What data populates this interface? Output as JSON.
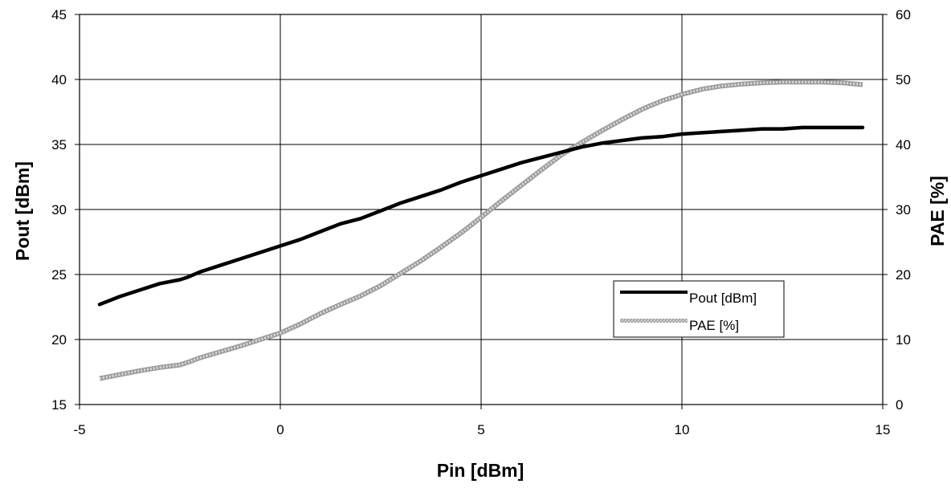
{
  "chart_data": {
    "type": "line",
    "title": "",
    "xlabel": "Pin [dBm]",
    "ylabel": "Pout [dBm]",
    "y2label": "PAE [%]",
    "xlim": [
      -5,
      15
    ],
    "ylim": [
      15,
      45
    ],
    "y2lim": [
      0,
      60
    ],
    "x_ticks": [
      -5,
      0,
      5,
      10,
      15
    ],
    "y_ticks": [
      15,
      20,
      25,
      30,
      35,
      40,
      45
    ],
    "y2_ticks": [
      0,
      10,
      20,
      30,
      40,
      50,
      60
    ],
    "grid": true,
    "legend_position": "bottom-right",
    "series": [
      {
        "name": "Pout [dBm]",
        "axis": "left",
        "color": "#000000",
        "style": "solid",
        "x": [
          -4.5,
          -4.0,
          -3.5,
          -3.0,
          -2.5,
          -2.3,
          -2.0,
          -1.5,
          -1.0,
          -0.5,
          0.0,
          0.5,
          1.0,
          1.5,
          2.0,
          2.5,
          3.0,
          3.5,
          4.0,
          4.5,
          5.0,
          5.5,
          6.0,
          6.5,
          7.0,
          7.5,
          8.0,
          8.5,
          9.0,
          9.5,
          10.0,
          10.5,
          11.0,
          11.5,
          12.0,
          12.5,
          13.0,
          13.5,
          14.0,
          14.5
        ],
        "y": [
          22.7,
          23.3,
          23.8,
          24.3,
          24.6,
          24.8,
          25.2,
          25.7,
          26.2,
          26.7,
          27.2,
          27.7,
          28.3,
          28.9,
          29.3,
          29.9,
          30.5,
          31.0,
          31.5,
          32.1,
          32.6,
          33.1,
          33.6,
          34.0,
          34.4,
          34.8,
          35.1,
          35.3,
          35.5,
          35.6,
          35.8,
          35.9,
          36.0,
          36.1,
          36.2,
          36.2,
          36.3,
          36.3,
          36.3,
          36.3
        ]
      },
      {
        "name": "PAE [%]",
        "axis": "right",
        "color": "#b8b8b8",
        "style": "hatched",
        "x": [
          -4.5,
          -4.0,
          -3.5,
          -3.0,
          -2.5,
          -2.3,
          -2.0,
          -1.5,
          -1.0,
          -0.5,
          0.0,
          0.5,
          1.0,
          1.5,
          2.0,
          2.5,
          3.0,
          3.5,
          4.0,
          4.5,
          5.0,
          5.5,
          6.0,
          6.5,
          7.0,
          7.5,
          8.0,
          8.5,
          9.0,
          9.5,
          10.0,
          10.5,
          11.0,
          11.5,
          12.0,
          12.5,
          13.0,
          13.5,
          14.0,
          14.5
        ],
        "y": [
          4.0,
          4.6,
          5.2,
          5.7,
          6.1,
          6.5,
          7.2,
          8.1,
          9.0,
          10.0,
          11.0,
          12.4,
          14.0,
          15.4,
          16.7,
          18.3,
          20.2,
          22.1,
          24.2,
          26.4,
          28.8,
          31.3,
          33.7,
          36.1,
          38.4,
          40.3,
          42.1,
          43.8,
          45.4,
          46.7,
          47.7,
          48.5,
          49.0,
          49.3,
          49.5,
          49.6,
          49.6,
          49.6,
          49.5,
          49.2
        ]
      }
    ]
  }
}
